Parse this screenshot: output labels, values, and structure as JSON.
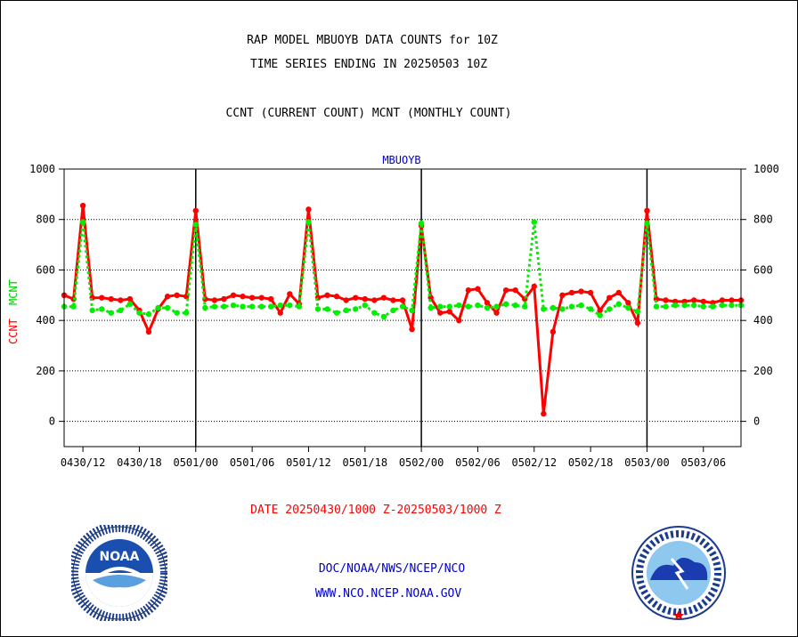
{
  "header": {
    "title_line1": "RAP MODEL MBUOYB DATA COUNTS for 10Z",
    "title_line2": "TIME SERIES ENDING IN 20250503 10Z",
    "subtitle": "CCNT (CURRENT COUNT) MCNT (MONTHLY COUNT)"
  },
  "footer": {
    "date_range": "DATE 20250430/1000 Z-20250503/1000 Z",
    "org": "DOC/NOAA/NWS/NCEP/NCO",
    "url": "WWW.NCO.NCEP.NOAA.GOV"
  },
  "logos": {
    "noaa": "noaa-logo",
    "nws": "nws-logo",
    "noaa_text": "NOAA"
  },
  "chart_data": {
    "type": "line",
    "title": "MBUOYB",
    "ylabel_ccnt": "CCNT",
    "ylabel_mcnt": "MCNT",
    "ylim": [
      -100,
      1000
    ],
    "yticks": [
      0,
      200,
      400,
      600,
      800,
      1000
    ],
    "grid": true,
    "xtick_labels": [
      "0430/12",
      "0430/18",
      "0501/00",
      "0501/06",
      "0501/12",
      "0501/18",
      "0502/00",
      "0502/06",
      "0502/12",
      "0502/18",
      "0503/00",
      "0503/06"
    ],
    "x_unit": "hours since 0430/10Z",
    "xlim": [
      0,
      72
    ],
    "x_day_boundaries": [
      14,
      38,
      62
    ],
    "colors": {
      "ccnt": "#ff0000",
      "mcnt": "#00ee00"
    },
    "series": [
      {
        "name": "CCNT",
        "x": [
          0,
          1,
          2,
          3,
          4,
          5,
          6,
          7,
          8,
          9,
          10,
          11,
          12,
          13,
          14,
          15,
          16,
          17,
          18,
          19,
          20,
          21,
          22,
          23,
          24,
          25,
          26,
          27,
          28,
          29,
          30,
          31,
          32,
          33,
          34,
          35,
          36,
          37,
          38,
          39,
          40,
          41,
          42,
          43,
          44,
          45,
          46,
          47,
          48,
          49,
          50,
          51,
          52,
          53,
          54,
          55,
          56,
          57,
          58,
          59,
          60,
          61,
          62,
          63,
          64,
          65,
          66,
          67,
          68,
          69,
          70,
          71,
          72
        ],
        "values": [
          500,
          485,
          855,
          490,
          490,
          485,
          480,
          485,
          440,
          355,
          445,
          495,
          500,
          495,
          835,
          485,
          480,
          485,
          500,
          495,
          490,
          490,
          485,
          430,
          505,
          465,
          840,
          490,
          500,
          495,
          480,
          490,
          485,
          480,
          490,
          480,
          480,
          365,
          775,
          490,
          430,
          435,
          400,
          520,
          525,
          470,
          430,
          520,
          520,
          485,
          535,
          30,
          355,
          500,
          510,
          515,
          510,
          440,
          490,
          510,
          470,
          390,
          835,
          485,
          480,
          475,
          475,
          480,
          475,
          470,
          480,
          480,
          480
        ]
      },
      {
        "name": "MCNT",
        "x": [
          0,
          1,
          2,
          3,
          4,
          5,
          6,
          7,
          8,
          9,
          10,
          11,
          12,
          13,
          14,
          15,
          16,
          17,
          18,
          19,
          20,
          21,
          22,
          23,
          24,
          25,
          26,
          27,
          28,
          29,
          30,
          31,
          32,
          33,
          34,
          35,
          36,
          37,
          38,
          39,
          40,
          41,
          42,
          43,
          44,
          45,
          46,
          47,
          48,
          49,
          50,
          51,
          52,
          53,
          54,
          55,
          56,
          57,
          58,
          59,
          60,
          61,
          62,
          63,
          64,
          65,
          66,
          67,
          68,
          69,
          70,
          71,
          72
        ],
        "values": [
          455,
          455,
          790,
          440,
          445,
          430,
          440,
          465,
          430,
          425,
          450,
          450,
          430,
          430,
          780,
          450,
          455,
          455,
          460,
          455,
          455,
          455,
          455,
          460,
          460,
          455,
          790,
          445,
          445,
          430,
          440,
          445,
          460,
          430,
          415,
          440,
          455,
          440,
          785,
          450,
          455,
          455,
          460,
          455,
          460,
          450,
          455,
          465,
          460,
          455,
          790,
          445,
          450,
          445,
          455,
          460,
          445,
          420,
          445,
          465,
          450,
          435,
          785,
          455,
          455,
          460,
          460,
          460,
          455,
          455,
          460,
          460,
          460
        ]
      }
    ]
  }
}
